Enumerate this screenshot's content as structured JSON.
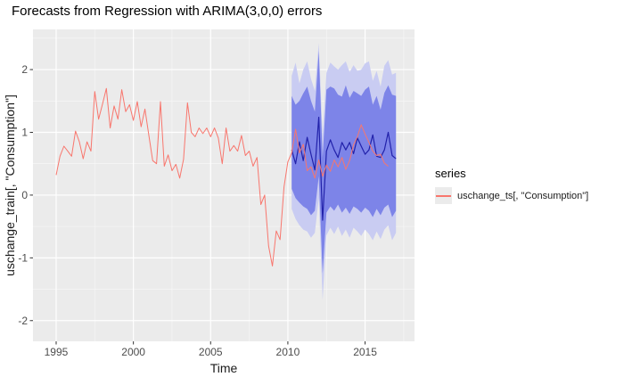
{
  "chart_data": {
    "type": "line",
    "title": "Forecasts from Regression with ARIMA(3,0,0) errors",
    "xlabel": "Time",
    "ylabel": "uschange_train[, \"Consumption\"]",
    "xlim": [
      1993.5,
      2018.2
    ],
    "ylim": [
      -2.33,
      2.64
    ],
    "x_ticks": [
      1995,
      2000,
      2005,
      2010,
      2015
    ],
    "y_ticks": [
      -2,
      -1,
      0,
      1,
      2
    ],
    "x_minor": [
      1997.5,
      2002.5,
      2007.5,
      2012.5,
      2017.5
    ],
    "y_minor": [
      -2.5,
      -1.5,
      -0.5,
      0.5,
      1.5,
      2.5
    ],
    "grid": true,
    "legend": {
      "position": "right",
      "title": "series",
      "entries": [
        {
          "label": "uschange_ts[, \"Consumption\"]",
          "color": "#F8766D"
        }
      ]
    },
    "colors": {
      "panel_bg": "#EBEBEB",
      "grid_major": "#FFFFFF",
      "grid_minor": "#FFFFFF",
      "tick_mark": "#333333",
      "tick_label": "#4D4D4D",
      "actual_line": "#F8766D",
      "forecast_line": "#2222AA",
      "band_80": "#7D84E8",
      "band_95": "#C9CCF2"
    },
    "ribbons": [
      {
        "name": "95% prediction interval",
        "color": "#C9CCF2",
        "x": [
          2010.25,
          2010.5,
          2010.75,
          2011.0,
          2011.25,
          2011.5,
          2011.75,
          2012.0,
          2012.25,
          2012.5,
          2012.75,
          2013.0,
          2013.25,
          2013.5,
          2013.75,
          2014.0,
          2014.25,
          2014.5,
          2014.75,
          2015.0,
          2015.25,
          2015.5,
          2015.75,
          2016.0,
          2016.25,
          2016.5,
          2016.75,
          2017.0
        ],
        "hi": [
          1.9,
          2.11,
          1.78,
          2.0,
          2.13,
          1.85,
          1.66,
          2.42,
          0.95,
          1.95,
          2.11,
          2.05,
          2.0,
          2.07,
          2.13,
          1.96,
          2.07,
          1.98,
          2.0,
          2.1,
          2.13,
          1.82,
          1.98,
          1.73,
          2.06,
          2.15,
          1.92,
          1.95
        ],
        "lo": [
          -0.22,
          -0.38,
          -0.48,
          -0.55,
          -0.58,
          -0.68,
          -0.6,
          -0.05,
          -1.67,
          -0.64,
          -0.52,
          -0.62,
          -0.5,
          -0.65,
          -0.55,
          -0.68,
          -0.52,
          -0.58,
          -0.65,
          -0.55,
          -0.62,
          -0.72,
          -0.58,
          -0.7,
          -0.55,
          -0.48,
          -0.72,
          -0.6
        ]
      },
      {
        "name": "80% prediction interval",
        "color": "#7D84E8",
        "x": [
          2010.25,
          2010.5,
          2010.75,
          2011.0,
          2011.25,
          2011.5,
          2011.75,
          2012.0,
          2012.25,
          2012.5,
          2012.75,
          2013.0,
          2013.25,
          2013.5,
          2013.75,
          2014.0,
          2014.25,
          2014.5,
          2014.75,
          2015.0,
          2015.25,
          2015.5,
          2015.75,
          2016.0,
          2016.25,
          2016.5,
          2016.75,
          2017.0
        ],
        "hi": [
          1.58,
          1.44,
          1.5,
          1.62,
          1.73,
          1.5,
          1.33,
          2.3,
          0.6,
          1.68,
          1.73,
          1.7,
          1.6,
          1.57,
          1.75,
          1.55,
          1.66,
          1.62,
          1.58,
          1.68,
          1.73,
          1.44,
          1.58,
          1.36,
          1.63,
          1.75,
          1.6,
          1.58
        ],
        "lo": [
          0.1,
          -0.05,
          -0.12,
          -0.18,
          -0.22,
          -0.32,
          -0.25,
          0.3,
          -1.25,
          -0.28,
          -0.18,
          -0.25,
          -0.15,
          -0.28,
          -0.2,
          -0.3,
          -0.18,
          -0.22,
          -0.28,
          -0.2,
          -0.25,
          -0.35,
          -0.22,
          -0.32,
          -0.2,
          -0.15,
          -0.35,
          -0.25
        ]
      }
    ],
    "series": [
      {
        "name": "forecast mean",
        "type": "line",
        "color": "#2222AA",
        "width": 1.2,
        "x": [
          2010.25,
          2010.5,
          2010.75,
          2011.0,
          2011.25,
          2011.5,
          2011.75,
          2012.0,
          2012.25,
          2012.5,
          2012.75,
          2013.0,
          2013.25,
          2013.5,
          2013.75,
          2014.0,
          2014.25,
          2014.5,
          2014.75,
          2015.0,
          2015.25,
          2015.5,
          2015.75,
          2016.0,
          2016.25,
          2016.5,
          2016.75,
          2017.0
        ],
        "y": [
          0.72,
          0.5,
          0.85,
          0.55,
          0.92,
          0.65,
          0.4,
          1.24,
          -0.4,
          0.7,
          0.88,
          0.72,
          0.6,
          0.84,
          0.72,
          0.84,
          0.66,
          0.91,
          0.78,
          0.65,
          0.72,
          0.96,
          0.62,
          0.6,
          0.72,
          1.0,
          0.63,
          0.58
        ]
      },
      {
        "name": "uschange_ts[, \"Consumption\"]",
        "type": "line",
        "color": "#F8766D",
        "width": 1.0,
        "x": [
          1995.0,
          1995.25,
          1995.5,
          1995.75,
          1996.0,
          1996.25,
          1996.5,
          1996.75,
          1997.0,
          1997.25,
          1997.5,
          1997.75,
          1998.0,
          1998.25,
          1998.5,
          1998.75,
          1999.0,
          1999.25,
          1999.5,
          1999.75,
          2000.0,
          2000.25,
          2000.5,
          2000.75,
          2001.0,
          2001.25,
          2001.5,
          2001.75,
          2002.0,
          2002.25,
          2002.5,
          2002.75,
          2003.0,
          2003.25,
          2003.5,
          2003.75,
          2004.0,
          2004.25,
          2004.5,
          2004.75,
          2005.0,
          2005.25,
          2005.5,
          2005.75,
          2006.0,
          2006.25,
          2006.5,
          2006.75,
          2007.0,
          2007.25,
          2007.5,
          2007.75,
          2008.0,
          2008.25,
          2008.5,
          2008.75,
          2009.0,
          2009.25,
          2009.5,
          2009.75,
          2010.0,
          2010.25,
          2010.5,
          2010.75,
          2011.0,
          2011.25,
          2011.5,
          2011.75,
          2012.0,
          2012.25,
          2012.5,
          2012.75,
          2013.0,
          2013.25,
          2013.5,
          2013.75,
          2014.0,
          2014.25,
          2014.5,
          2014.75,
          2015.0,
          2015.25,
          2015.5,
          2015.75,
          2016.0,
          2016.25,
          2016.5
        ],
        "y": [
          0.32,
          0.62,
          0.78,
          0.7,
          0.62,
          1.02,
          0.85,
          0.58,
          0.85,
          0.7,
          1.65,
          1.21,
          1.45,
          1.7,
          1.07,
          1.42,
          1.21,
          1.68,
          1.33,
          1.44,
          1.19,
          1.49,
          1.09,
          1.37,
          0.95,
          0.55,
          0.5,
          1.49,
          0.46,
          0.64,
          0.39,
          0.49,
          0.27,
          0.57,
          1.47,
          1.0,
          0.93,
          1.07,
          0.98,
          1.07,
          0.93,
          1.07,
          0.91,
          0.5,
          1.07,
          0.7,
          0.79,
          0.7,
          0.95,
          0.63,
          0.7,
          0.46,
          0.6,
          -0.15,
          0.0,
          -0.81,
          -1.13,
          -0.57,
          -0.71,
          0.13,
          0.53,
          0.67,
          1.05,
          0.67,
          0.81,
          0.39,
          0.45,
          0.27,
          0.56,
          0.3,
          0.48,
          0.38,
          0.56,
          0.45,
          0.6,
          0.41,
          0.55,
          0.8,
          0.93,
          1.12,
          0.97,
          0.84,
          0.7,
          0.63,
          0.65,
          0.51,
          0.46
        ]
      }
    ]
  }
}
